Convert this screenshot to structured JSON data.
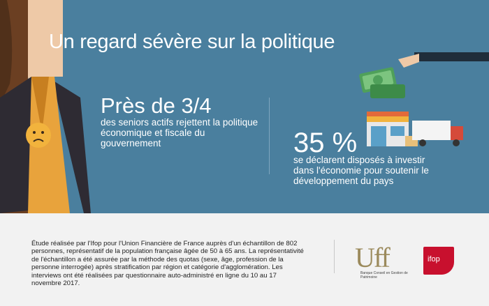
{
  "banner": {
    "title": "Un regard sévère sur la politique",
    "stat1": {
      "value": "Près de 3/4",
      "description": "des seniors actifs rejettent la politique économique et fiscale du gouvernement"
    },
    "stat2": {
      "value": "35 %",
      "description": "se déclarent disposés à investir dans l'économie pour soutenir le développement du pays"
    }
  },
  "footer": {
    "methodology": "Étude réalisée par l'Ifop pour l'Union Financière de France auprès d'un échantillon de 802 personnes, représentatif de la population française âgée de 50 à 65 ans. La représentativité de l'échantillon a été assurée par la méthode des quotas (sexe, âge, profession de la personne interrogée) après stratification par région et catégorie d'agglomération. Les interviews ont été réalisées par questionnaire auto-administré en ligne du 10 au 17 novembre 2017.",
    "uff_logo": "Uff",
    "uff_tagline": "Banque Conseil en Gestion de Patrimoine",
    "ifop_logo": "ifop"
  },
  "colors": {
    "banner_bg": "#4a7f9e",
    "footer_bg": "#f2f2f2",
    "uff_gold": "#9b8a5c",
    "ifop_red": "#c8102e",
    "smiley_yellow": "#f2b33d"
  },
  "icons": [
    "person-illustration",
    "sad-face-icon",
    "money-hand-icon",
    "shop-truck-icon",
    "uff-logo",
    "ifop-logo"
  ]
}
